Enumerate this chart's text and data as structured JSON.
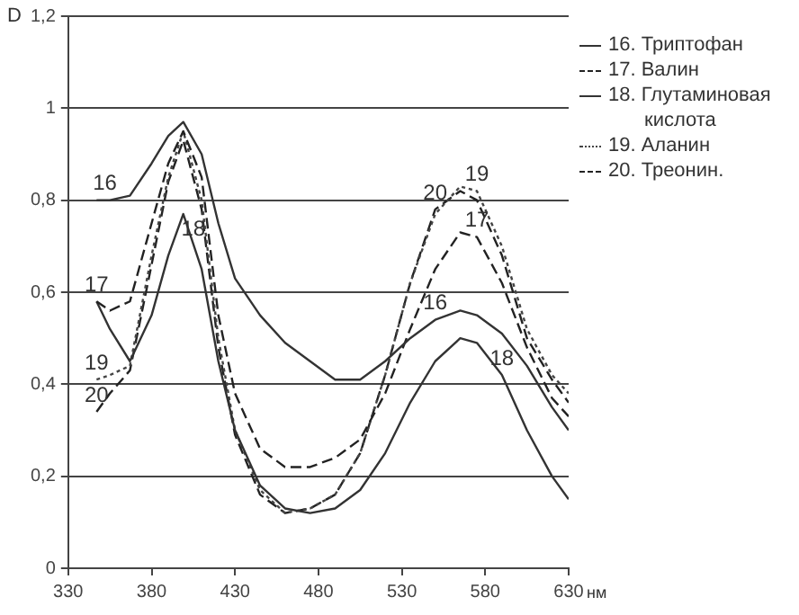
{
  "chart_data": {
    "type": "line",
    "ylabel": "D",
    "xlabel": "нм",
    "legend": "right",
    "grid": "y",
    "marker": "none",
    "x": [
      347,
      355,
      367,
      380,
      390,
      399,
      410,
      420,
      430,
      445,
      460,
      475,
      490,
      505,
      520,
      535,
      550,
      565,
      575,
      590,
      605,
      620,
      630
    ],
    "xlim": [
      330,
      630
    ],
    "xticks": [
      330,
      380,
      430,
      480,
      530,
      580,
      630
    ],
    "ylim": [
      0,
      1.2
    ],
    "yticks": [
      0,
      {
        "value": 0.2,
        "label": "0,2"
      },
      {
        "value": 0.4,
        "label": "0,4"
      },
      {
        "value": 0.6,
        "label": "0,6"
      },
      {
        "value": 0.8,
        "label": "0,8"
      },
      1,
      {
        "value": 1.2,
        "label": "1,2"
      }
    ],
    "series": [
      {
        "name": "16. Триптофан",
        "color": "#333333",
        "line_style": "solid",
        "values": [
          0.8,
          0.8,
          0.81,
          0.88,
          0.94,
          0.97,
          0.9,
          0.75,
          0.63,
          0.55,
          0.49,
          0.45,
          0.41,
          0.41,
          0.45,
          0.5,
          0.54,
          0.56,
          0.55,
          0.51,
          0.44,
          0.35,
          0.3
        ]
      },
      {
        "name": "17. Валин",
        "color": "#222222",
        "line_style": "dashed",
        "values": [
          0.58,
          0.56,
          0.58,
          0.75,
          0.88,
          0.95,
          0.85,
          0.55,
          0.38,
          0.26,
          0.22,
          0.22,
          0.24,
          0.28,
          0.38,
          0.52,
          0.65,
          0.73,
          0.72,
          0.62,
          0.48,
          0.37,
          0.33
        ]
      },
      {
        "name": "18. Глутаминовая кислота",
        "color": "#333333",
        "line_style": "solid",
        "values": [
          0.58,
          0.52,
          0.45,
          0.55,
          0.68,
          0.77,
          0.65,
          0.45,
          0.3,
          0.18,
          0.13,
          0.12,
          0.13,
          0.17,
          0.25,
          0.36,
          0.45,
          0.5,
          0.49,
          0.42,
          0.3,
          0.2,
          0.15
        ]
      },
      {
        "name": "19. Аланин",
        "color": "#444444",
        "line_style": "dotted",
        "values": [
          0.41,
          0.42,
          0.44,
          0.68,
          0.85,
          0.95,
          0.8,
          0.5,
          0.3,
          0.17,
          0.12,
          0.13,
          0.16,
          0.25,
          0.42,
          0.62,
          0.77,
          0.83,
          0.82,
          0.7,
          0.52,
          0.42,
          0.38
        ]
      },
      {
        "name": "20. Треонин.",
        "color": "#222222",
        "line_style": "dashed",
        "values": [
          0.34,
          0.38,
          0.43,
          0.66,
          0.84,
          0.93,
          0.78,
          0.48,
          0.29,
          0.16,
          0.12,
          0.13,
          0.16,
          0.25,
          0.42,
          0.62,
          0.78,
          0.82,
          0.8,
          0.68,
          0.5,
          0.41,
          0.36
        ]
      }
    ],
    "annotations": [
      {
        "text": "16",
        "x": 352,
        "y": 0.8
      },
      {
        "text": "17",
        "x": 347,
        "y": 0.58
      },
      {
        "text": "18",
        "x": 405,
        "y": 0.7
      },
      {
        "text": "19",
        "x": 347,
        "y": 0.41
      },
      {
        "text": "20",
        "x": 347,
        "y": 0.34
      },
      {
        "text": "20",
        "x": 550,
        "y": 0.78
      },
      {
        "text": "19",
        "x": 575,
        "y": 0.82
      },
      {
        "text": "17",
        "x": 575,
        "y": 0.72
      },
      {
        "text": "16",
        "x": 550,
        "y": 0.54
      },
      {
        "text": "18",
        "x": 590,
        "y": 0.42
      }
    ]
  }
}
